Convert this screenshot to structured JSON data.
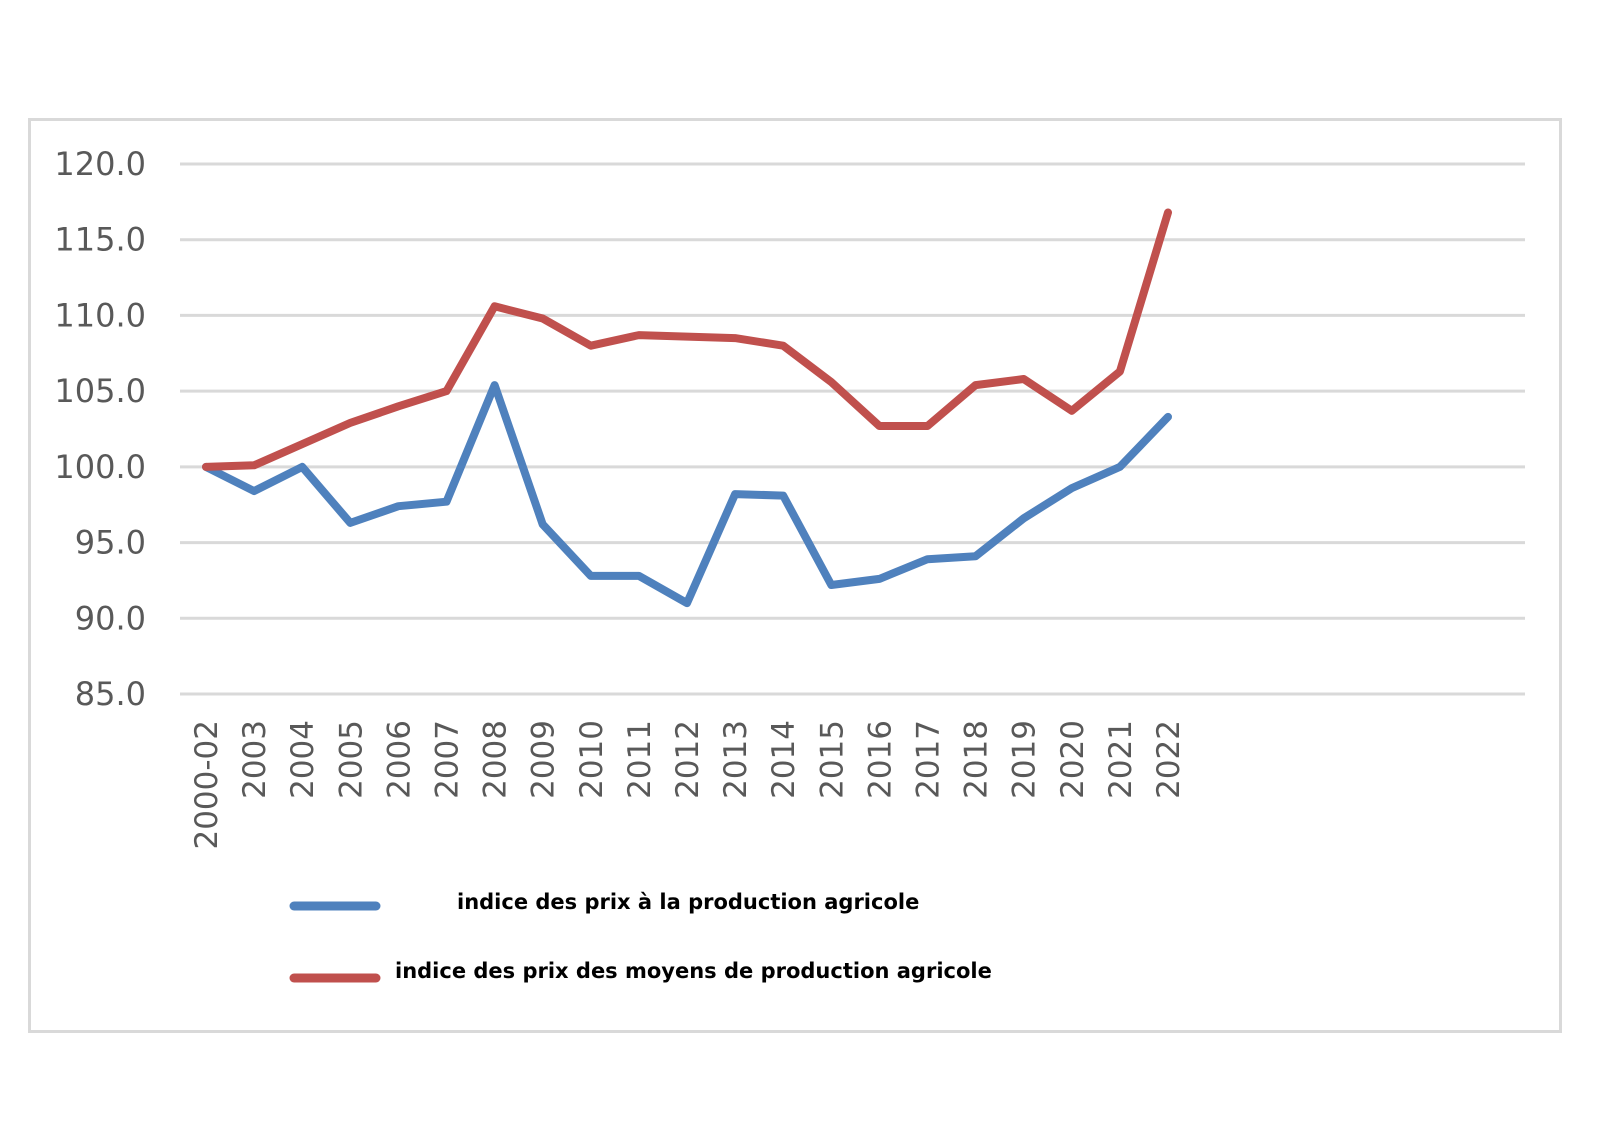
{
  "chart_data": {
    "type": "line",
    "title": "",
    "xlabel": "",
    "ylabel": "",
    "categories": [
      "2000-02",
      "2003",
      "2004",
      "2005",
      "2006",
      "2007",
      "2008",
      "2009",
      "2010",
      "2011",
      "2012",
      "2013",
      "2014",
      "2015",
      "2016",
      "2017",
      "2018",
      "2019",
      "2020",
      "2021",
      "2022"
    ],
    "ylim": [
      85,
      120
    ],
    "yticks": [
      120,
      115,
      110,
      105,
      100,
      95,
      90,
      85
    ],
    "ytick_labels": [
      "120.0",
      "115.0",
      "110.0",
      "105.0",
      "100.0",
      "95.0",
      "90.0",
      "85.0"
    ],
    "grid": true,
    "legend_position": "bottom",
    "series": [
      {
        "name": "indice des prix à la production agricole",
        "color": "#4f81bd",
        "values": [
          100.0,
          98.4,
          100.0,
          96.3,
          97.4,
          97.7,
          105.4,
          96.2,
          92.8,
          92.8,
          91.0,
          98.2,
          98.1,
          92.2,
          92.6,
          93.9,
          94.1,
          96.6,
          98.6,
          100.0,
          103.3
        ]
      },
      {
        "name": "indice des prix des moyens de production agricole",
        "color": "#c0504d",
        "values": [
          100.0,
          100.1,
          101.5,
          102.9,
          104.0,
          105.0,
          110.6,
          109.8,
          108.0,
          108.7,
          108.6,
          108.5,
          108.0,
          105.6,
          102.7,
          102.7,
          105.4,
          105.8,
          103.7,
          106.3,
          116.8
        ]
      }
    ]
  }
}
